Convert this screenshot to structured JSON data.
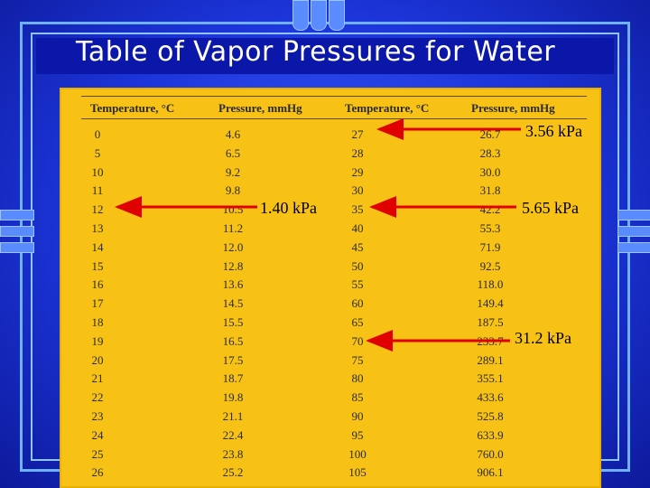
{
  "slide": {
    "title": "Table of Vapor Pressures for Water"
  },
  "table": {
    "headers": [
      "Temperature, °C",
      "Pressure, mmHg",
      "Temperature, °C",
      "Pressure, mmHg"
    ],
    "left_temps": [
      "0",
      "5",
      "10",
      "11",
      "12",
      "13",
      "14",
      "15",
      "16",
      "17",
      "18",
      "19",
      "20",
      "21",
      "22",
      "23",
      "24",
      "25",
      "26"
    ],
    "left_pressures": [
      "4.6",
      "6.5",
      "9.2",
      "9.8",
      "10.5",
      "11.2",
      "12.0",
      "12.8",
      "13.6",
      "14.5",
      "15.5",
      "16.5",
      "17.5",
      "18.7",
      "19.8",
      "21.1",
      "22.4",
      "23.8",
      "25.2"
    ],
    "right_temps": [
      "27",
      "28",
      "29",
      "30",
      "35",
      "40",
      "45",
      "50",
      "55",
      "60",
      "65",
      "70",
      "75",
      "80",
      "85",
      "90",
      "95",
      "100",
      "105"
    ],
    "right_pressures": [
      "26.7",
      "28.3",
      "30.0",
      "31.8",
      "42.2",
      "55.3",
      "71.9",
      "92.5",
      "118.0",
      "149.4",
      "187.5",
      "233.7",
      "289.1",
      "355.1",
      "433.6",
      "525.8",
      "633.9",
      "760.0",
      "906.1"
    ]
  },
  "annotations": {
    "a1": "3.56 kPa",
    "a2": "1.40 kPa",
    "a3": "5.65 kPa",
    "a4": "31.2 kPa"
  },
  "colors": {
    "arrow": "#e00000",
    "table_bg": "#f7c215",
    "slide_bg": "#1c34d8"
  }
}
